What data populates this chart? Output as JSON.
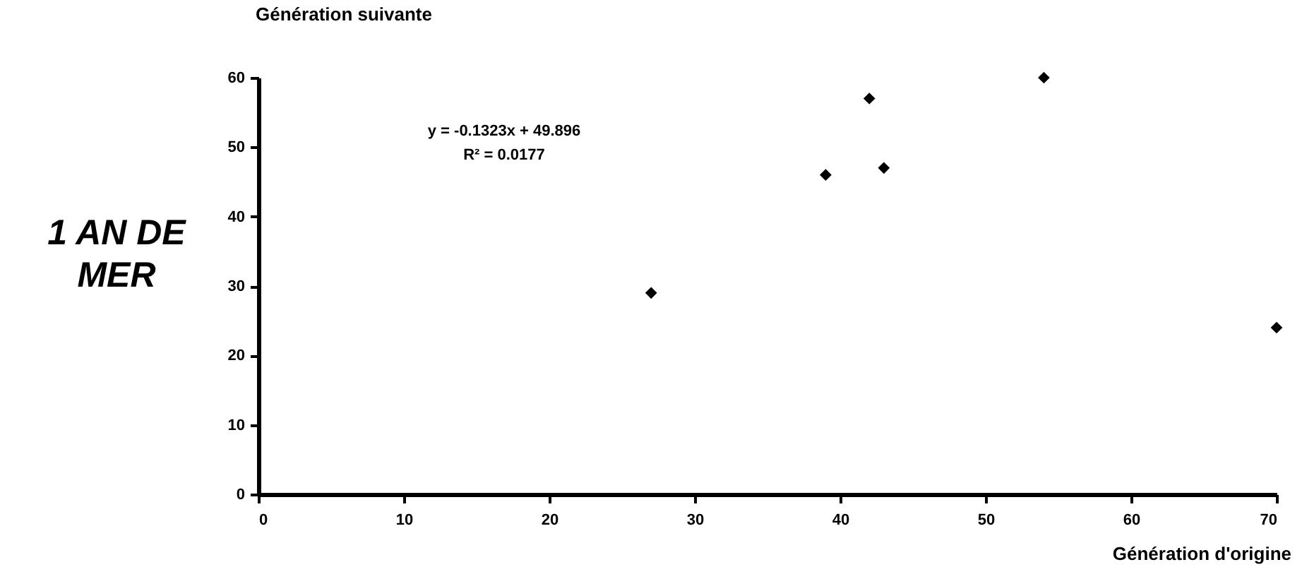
{
  "chart_data": {
    "type": "scatter",
    "title": "1 AN DE MER",
    "xlabel": "Génération d'origine",
    "ylabel": "Génération suivante",
    "annotations": [
      "y = -0.1323x + 49.896",
      "R² = 0.0177"
    ],
    "x": [
      27,
      39,
      42,
      43,
      54,
      70
    ],
    "series": [
      {
        "color": "#000000",
        "values": [
          29,
          46,
          57,
          47,
          60,
          24
        ]
      }
    ],
    "xlim": [
      0,
      70
    ],
    "xticks": [
      0,
      10,
      20,
      30,
      40,
      50,
      60,
      70
    ],
    "ylim": [
      0,
      60
    ],
    "yticks": [
      0,
      10,
      20,
      30,
      40,
      50,
      60
    ],
    "marker": "diamond",
    "grid": false,
    "legend": false
  }
}
